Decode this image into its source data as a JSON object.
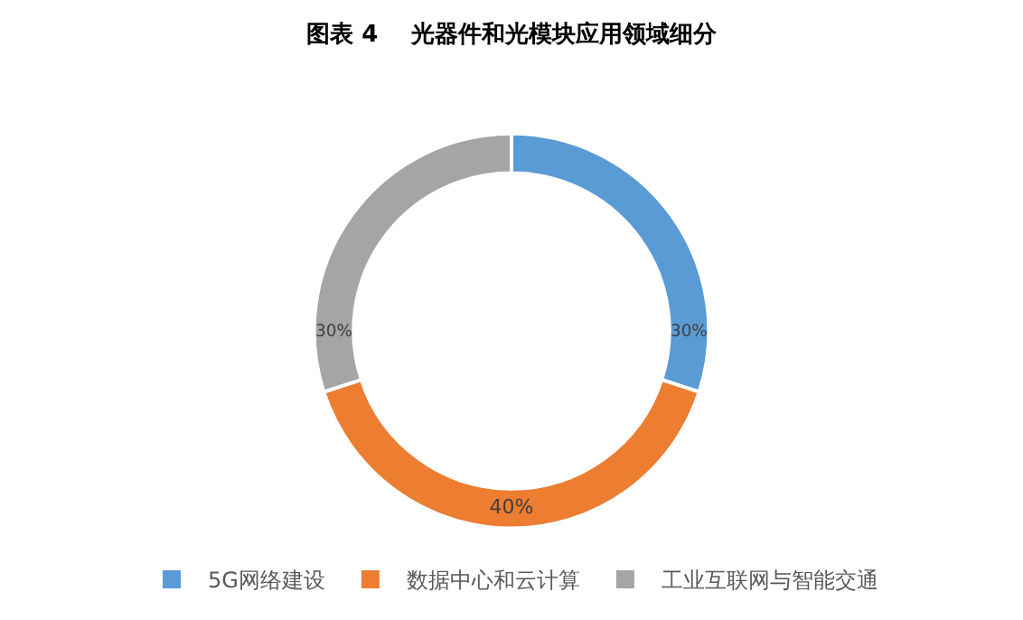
{
  "chart_data": {
    "type": "donut",
    "title": "图表 4    光器件和光模块应用领域细分",
    "categories": [
      "5G网络建设",
      "数据中心和云计算",
      "工业互联网与智能交通"
    ],
    "values": [
      30,
      40,
      30
    ],
    "colors": [
      "#5b9bd5",
      "#ed7d31",
      "#a5a5a5"
    ],
    "value_labels": [
      "30%",
      "40%",
      "30%"
    ],
    "legend": "bottom"
  }
}
